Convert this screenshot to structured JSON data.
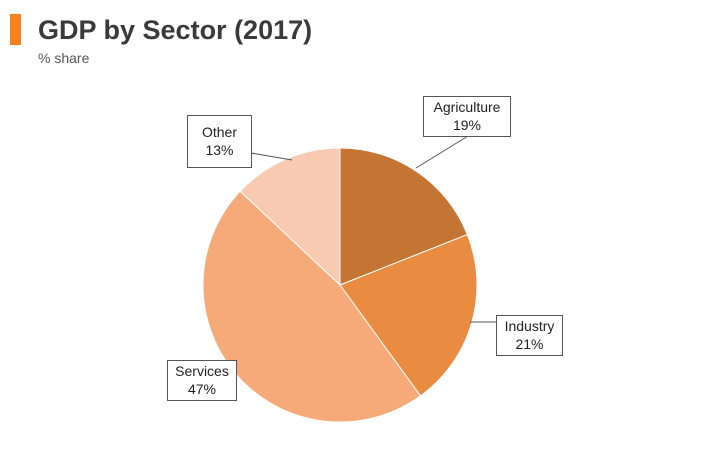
{
  "header": {
    "title": "GDP by Sector (2017)",
    "subtitle": "% share",
    "accent_color": "#f5821f"
  },
  "chart_data": {
    "type": "pie",
    "title": "GDP by Sector (2017)",
    "subtitle": "% share",
    "unit": "%",
    "slices": [
      {
        "name": "Agriculture",
        "value": 19,
        "label": "19%",
        "color": "#c57533"
      },
      {
        "name": "Industry",
        "value": 21,
        "label": "21%",
        "color": "#e98c42"
      },
      {
        "name": "Services",
        "value": 47,
        "label": "47%",
        "color": "#f6aa79"
      },
      {
        "name": "Other",
        "value": 13,
        "label": "13%",
        "color": "#f8cab2"
      }
    ]
  }
}
